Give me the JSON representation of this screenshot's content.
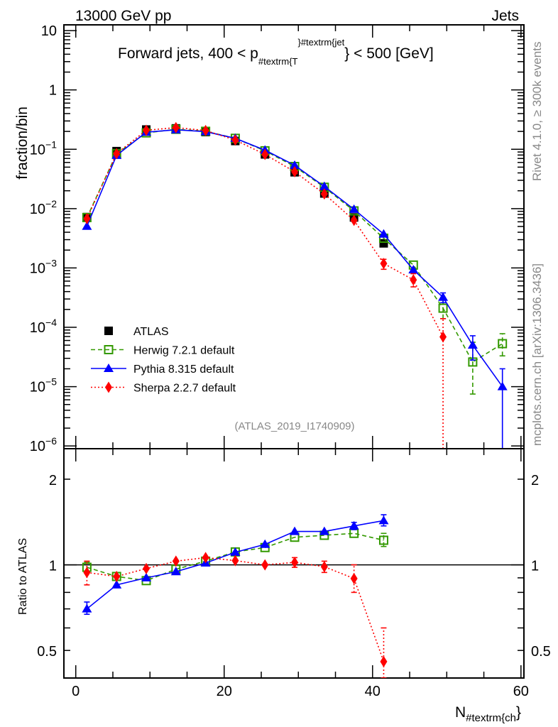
{
  "header": {
    "left": "13000 GeV pp",
    "right": "Jets"
  },
  "side": {
    "rivet": "Rivet 4.1.0, ≥ 300k events",
    "mcplots": "mcplots.cern.ch [arXiv:1306.3436]"
  },
  "title_parts": {
    "main": "Forward jets, 400 < p",
    "sub": "#textrm{T",
    "sup": "}#textrm{jet",
    "tail": "} < 500 [GeV]"
  },
  "analysis_id": "(ATLAS_2019_I1740909)",
  "chart_data": [
    {
      "type": "line",
      "panel": "main",
      "ylabel": "fraction/bin",
      "yscale": "log",
      "ylim": [
        9e-07,
        12.5
      ],
      "xlim": [
        -1.6,
        60.4
      ],
      "ytick_labels": [
        {
          "base": "10",
          "exp": ""
        },
        {
          "base": "1",
          "exp": ""
        },
        {
          "base": "10",
          "exp": "−1"
        },
        {
          "base": "10",
          "exp": "−2"
        },
        {
          "base": "10",
          "exp": "−3"
        },
        {
          "base": "10",
          "exp": "−4"
        },
        {
          "base": "10",
          "exp": "−5"
        },
        {
          "base": "10",
          "exp": "−6"
        }
      ],
      "ytick_values": [
        10,
        1,
        0.1,
        0.01,
        0.001,
        0.0001,
        1e-05,
        1e-06
      ],
      "legend_position": "lower-left",
      "series": [
        {
          "name": "ATLAS",
          "color": "#000000",
          "marker": "square",
          "line": "none",
          "x": [
            1.5,
            5.5,
            9.5,
            13.5,
            17.5,
            21.5,
            25.5,
            29.5,
            33.5,
            37.5,
            41.5
          ],
          "y": [
            0.0072,
            0.093,
            0.215,
            0.225,
            0.195,
            0.138,
            0.082,
            0.041,
            0.018,
            0.0071,
            0.0026
          ]
        },
        {
          "name": "Herwig 7.2.1 default",
          "color": "#339900",
          "marker": "open-square",
          "line": "dashed",
          "x": [
            1.5,
            5.5,
            9.5,
            13.5,
            17.5,
            21.5,
            25.5,
            29.5,
            33.5,
            37.5,
            41.5,
            45.5,
            49.5,
            53.5,
            57.5
          ],
          "y": [
            0.00706,
            0.0846,
            0.189,
            0.217,
            0.201,
            0.153,
            0.0943,
            0.0513,
            0.0229,
            0.00916,
            0.00317,
            0.00112,
            0.00021,
            2.6e-05,
            5.3e-05
          ],
          "err": {
            "49.5": [
              0.00014,
              0.00029
            ],
            "53.5": [
              7.5e-06,
              5.6e-05
            ],
            "57.5": [
              3.3e-05,
              7.8e-05
            ]
          }
        },
        {
          "name": "Pythia 8.315 default",
          "color": "#0000ff",
          "marker": "triangle",
          "line": "solid",
          "x": [
            1.5,
            5.5,
            9.5,
            13.5,
            17.5,
            21.5,
            25.5,
            29.5,
            33.5,
            37.5,
            41.5,
            45.5,
            49.5,
            53.5,
            57.5
          ],
          "y": [
            0.00504,
            0.079,
            0.194,
            0.213,
            0.198,
            0.153,
            0.0968,
            0.0537,
            0.0236,
            0.00973,
            0.00372,
            0.00093,
            0.00032,
            5e-05,
            1e-05
          ],
          "err": {
            "49.5": [
              0.00026,
              0.00038
            ],
            "53.5": [
              2.8e-05,
              7.2e-05
            ],
            "57.5": [
              0,
              2e-05
            ]
          }
        },
        {
          "name": "Sherpa 2.2.7 default",
          "color": "#ff0000",
          "marker": "diamond",
          "line": "dotted",
          "x": [
            1.5,
            5.5,
            9.5,
            13.5,
            17.5,
            21.5,
            25.5,
            29.5,
            33.5,
            37.5,
            41.5,
            45.5,
            49.5
          ],
          "y": [
            0.00677,
            0.0846,
            0.209,
            0.232,
            0.207,
            0.143,
            0.082,
            0.0418,
            0.0177,
            0.00635,
            0.00119,
            0.00063,
            6.9e-05
          ],
          "err": {
            "41.5": [
              0.00095,
              0.0014
            ],
            "45.5": [
              0.00048,
              0.0008
            ],
            "49.5": [
              0,
              0.00014
            ]
          }
        }
      ]
    },
    {
      "type": "line",
      "panel": "ratio",
      "ylabel": "Ratio to ATLAS",
      "xlabel_parts": {
        "main": "N",
        "sub": "#textrm{ch",
        "tail": "}"
      },
      "yscale": "log",
      "ylim": [
        0.4,
        2.56
      ],
      "xlim": [
        -1.6,
        60.4
      ],
      "xtick_labels": [
        "0",
        "20",
        "40",
        "60"
      ],
      "xtick_values": [
        0,
        20,
        40,
        60
      ],
      "ytick_labels": [
        "2",
        "1",
        "0.5"
      ],
      "ytick_values": [
        2,
        1,
        0.5
      ],
      "series": [
        {
          "name": "Herwig 7.2.1 default",
          "color": "#339900",
          "marker": "open-square",
          "line": "dashed",
          "x": [
            1.5,
            5.5,
            9.5,
            13.5,
            17.5,
            21.5,
            25.5,
            29.5,
            33.5,
            37.5,
            41.5
          ],
          "y": [
            0.98,
            0.91,
            0.88,
            0.965,
            1.03,
            1.11,
            1.15,
            1.25,
            1.27,
            1.29,
            1.22
          ],
          "err": {
            "1.5": [
              0.95,
              1.02
            ],
            "41.5": [
              1.16,
              1.29
            ]
          }
        },
        {
          "name": "Pythia 8.315 default",
          "color": "#0000ff",
          "marker": "triangle",
          "line": "solid",
          "x": [
            1.5,
            5.5,
            9.5,
            13.5,
            17.5,
            21.5,
            25.5,
            29.5,
            33.5,
            37.5,
            41.5
          ],
          "y": [
            0.7,
            0.85,
            0.9,
            0.946,
            1.015,
            1.107,
            1.18,
            1.31,
            1.31,
            1.37,
            1.43
          ],
          "err": {
            "1.5": [
              0.67,
              0.74
            ],
            "37.5": [
              1.33,
              1.41
            ],
            "41.5": [
              1.37,
              1.5
            ]
          }
        },
        {
          "name": "Sherpa 2.2.7 default",
          "color": "#ff0000",
          "marker": "diamond",
          "line": "dotted",
          "x": [
            1.5,
            5.5,
            9.5,
            13.5,
            17.5,
            21.5,
            25.5,
            29.5,
            33.5,
            37.5,
            41.5
          ],
          "y": [
            0.94,
            0.91,
            0.97,
            1.03,
            1.06,
            1.035,
            1.0,
            1.02,
            0.985,
            0.895,
            0.457
          ],
          "err": {
            "1.5": [
              0.85,
              1.03
            ],
            "29.5": [
              0.98,
              1.06
            ],
            "33.5": [
              0.94,
              1.03
            ],
            "37.5": [
              0.8,
              1.0
            ],
            "41.5": [
              0.4,
              0.6
            ]
          }
        }
      ]
    }
  ]
}
